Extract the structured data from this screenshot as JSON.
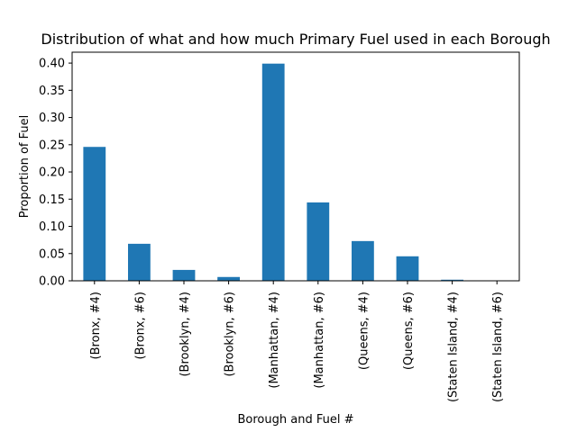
{
  "chart_data": {
    "type": "bar",
    "title": "Distribution of what and how much Primary Fuel used in each Borough",
    "xlabel": "Borough and Fuel #",
    "ylabel": "Proportion of Fuel",
    "categories": [
      "(Bronx, #4)",
      "(Bronx, #6)",
      "(Brooklyn, #4)",
      "(Brooklyn, #6)",
      "(Manhattan, #4)",
      "(Manhattan, #6)",
      "(Queens, #4)",
      "(Queens, #6)",
      "(Staten Island, #4)",
      "(Staten Island, #6)"
    ],
    "values": [
      0.246,
      0.068,
      0.02,
      0.007,
      0.399,
      0.144,
      0.073,
      0.045,
      0.002,
      0.0003
    ],
    "ylim": [
      0,
      0.42
    ],
    "yticks": [
      0.0,
      0.05,
      0.1,
      0.15,
      0.2,
      0.25,
      0.3,
      0.35,
      0.4
    ],
    "ytick_labels": [
      "0.00",
      "0.05",
      "0.10",
      "0.15",
      "0.20",
      "0.25",
      "0.30",
      "0.35",
      "0.40"
    ],
    "grid": false,
    "legend": false,
    "bar_color": "#1f77b4"
  }
}
